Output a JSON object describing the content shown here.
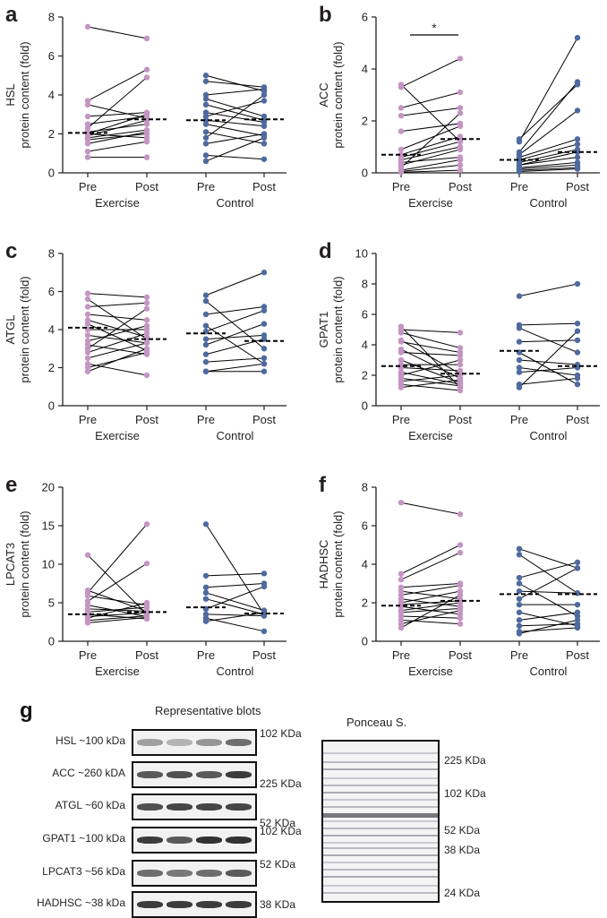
{
  "colors": {
    "exercise": "#c495c3",
    "control": "#4e6a9e",
    "line": "#000000",
    "axis": "#231f20"
  },
  "chart_data": [
    {
      "panel": "a",
      "type": "scatter",
      "ylabel": [
        "HSL",
        "protein content (fold)"
      ],
      "yticks": [
        0,
        2,
        4,
        6,
        8
      ],
      "ylim": [
        0,
        8
      ],
      "categories": [
        "Pre",
        "Post",
        "Pre",
        "Post"
      ],
      "groups": [
        "Exercise",
        "Control"
      ],
      "exercise": {
        "pre": [
          7.5,
          3.7,
          3.5,
          2.9,
          2.5,
          2.3,
          2.1,
          2.0,
          2.0,
          1.9,
          1.8,
          1.7,
          1.5,
          1.1,
          0.8
        ],
        "post": [
          6.9,
          5.3,
          2.8,
          3.1,
          2.9,
          4.9,
          2.5,
          3.0,
          1.8,
          2.7,
          2.2,
          2.0,
          2.1,
          1.6,
          0.8
        ],
        "mean_pre": 2.05,
        "mean_post": 2.75
      },
      "control": {
        "pre": [
          5.0,
          4.7,
          4.0,
          3.8,
          3.5,
          3.1,
          2.9,
          2.7,
          2.5,
          2.1,
          1.8,
          1.5,
          0.9,
          0.6
        ],
        "post": [
          4.2,
          4.4,
          4.3,
          2.9,
          2.7,
          2.6,
          3.7,
          2.4,
          1.9,
          1.5,
          4.0,
          2.0,
          0.7,
          1.8
        ],
        "mean_pre": 2.7,
        "mean_post": 2.75
      },
      "annotation": ""
    },
    {
      "panel": "b",
      "type": "scatter",
      "ylabel": [
        "ACC",
        "protein content (fold)"
      ],
      "yticks": [
        0,
        2,
        4,
        6
      ],
      "ylim": [
        0,
        6
      ],
      "categories": [
        "Pre",
        "Post",
        "Pre",
        "Post"
      ],
      "groups": [
        "Exercise",
        "Control"
      ],
      "exercise": {
        "pre": [
          3.4,
          3.3,
          2.5,
          2.2,
          1.6,
          0.9,
          0.7,
          0.6,
          0.5,
          0.4,
          0.3,
          0.2,
          0.1,
          0.05,
          0.02
        ],
        "post": [
          1.2,
          4.4,
          3.1,
          2.5,
          1.9,
          1.8,
          1.4,
          1.2,
          1.0,
          0.6,
          0.9,
          2.3,
          0.5,
          0.3,
          0.1
        ],
        "mean_pre": 0.7,
        "mean_post": 1.3
      },
      "control": {
        "pre": [
          1.3,
          1.2,
          0.8,
          0.7,
          0.6,
          0.5,
          0.4,
          0.3,
          0.3,
          0.2,
          0.15,
          0.1,
          0.05
        ],
        "post": [
          3.4,
          5.2,
          3.5,
          2.4,
          1.3,
          1.1,
          0.9,
          0.8,
          0.6,
          0.4,
          0.3,
          0.2,
          0.15
        ],
        "mean_pre": 0.5,
        "mean_post": 0.8
      },
      "annotation": "*"
    },
    {
      "panel": "c",
      "type": "scatter",
      "ylabel": [
        "ATGL",
        "protein content (fold)"
      ],
      "yticks": [
        0,
        2,
        4,
        6,
        8
      ],
      "ylim": [
        0,
        8
      ],
      "categories": [
        "Pre",
        "Post",
        "Pre",
        "Post"
      ],
      "groups": [
        "Exercise",
        "Control"
      ],
      "exercise": {
        "pre": [
          5.9,
          5.6,
          5.2,
          4.8,
          4.5,
          4.3,
          4.0,
          3.7,
          3.4,
          3.2,
          3.0,
          2.8,
          2.5,
          2.2,
          2.0,
          1.8
        ],
        "post": [
          5.7,
          3.5,
          5.4,
          4.5,
          3.6,
          2.9,
          4.0,
          3.3,
          4.2,
          2.7,
          5.1,
          3.8,
          3.3,
          1.6,
          2.8,
          3.0
        ],
        "mean_pre": 4.1,
        "mean_post": 3.5
      },
      "control": {
        "pre": [
          5.8,
          5.5,
          4.8,
          4.2,
          3.9,
          3.5,
          3.2,
          2.7,
          2.3,
          1.8,
          1.8
        ],
        "post": [
          7.0,
          3.0,
          5.2,
          2.2,
          5.0,
          3.7,
          4.3,
          3.5,
          2.5,
          2.2,
          1.8
        ],
        "mean_pre": 3.8,
        "mean_post": 3.4
      },
      "annotation": ""
    },
    {
      "panel": "d",
      "type": "scatter",
      "ylabel": [
        "GPAT1",
        "protein content (fold)"
      ],
      "yticks": [
        0,
        2,
        4,
        6,
        8,
        10
      ],
      "ylim": [
        0,
        10
      ],
      "categories": [
        "Pre",
        "Post",
        "Pre",
        "Post"
      ],
      "groups": [
        "Exercise",
        "Control"
      ],
      "exercise": {
        "pre": [
          5.2,
          5.0,
          4.8,
          4.3,
          4.2,
          3.7,
          3.5,
          3.0,
          2.7,
          2.5,
          2.2,
          2.0,
          1.8,
          1.6,
          1.4,
          1.2
        ],
        "post": [
          1.2,
          4.8,
          3.8,
          2.1,
          3.5,
          1.8,
          3.3,
          1.5,
          2.7,
          2.3,
          1.4,
          3.0,
          1.3,
          2.0,
          1.0,
          1.7
        ],
        "mean_pre": 2.6,
        "mean_post": 2.1
      },
      "control": {
        "pre": [
          7.2,
          5.3,
          5.1,
          4.2,
          3.5,
          3.0,
          2.5,
          2.2,
          1.4,
          1.2
        ],
        "post": [
          8.0,
          5.4,
          3.5,
          4.3,
          1.4,
          2.7,
          2.0,
          2.5,
          1.8,
          4.9
        ],
        "mean_pre": 3.6,
        "mean_post": 2.6
      },
      "annotation": ""
    },
    {
      "panel": "e",
      "type": "scatter",
      "ylabel": [
        "LPCAT3",
        "protein content (fold)"
      ],
      "yticks": [
        0,
        5,
        10,
        15,
        20
      ],
      "ylim": [
        0,
        20
      ],
      "categories": [
        "Pre",
        "Post",
        "Pre",
        "Post"
      ],
      "groups": [
        "Exercise",
        "Control"
      ],
      "exercise": {
        "pre": [
          11.2,
          6.6,
          6.3,
          5.9,
          5.2,
          4.7,
          4.2,
          3.8,
          3.5,
          3.2,
          3.0,
          2.7,
          2.4
        ],
        "post": [
          3.5,
          3.9,
          15.2,
          4.7,
          10.1,
          3.2,
          3.9,
          4.4,
          2.9,
          3.7,
          5.0,
          3.3,
          3.1
        ],
        "mean_pre": 3.5,
        "mean_post": 3.8
      },
      "control": {
        "pre": [
          15.2,
          8.5,
          7.0,
          6.3,
          5.5,
          4.2,
          3.5,
          3.0,
          2.6
        ],
        "post": [
          3.5,
          8.8,
          7.5,
          4.0,
          3.5,
          7.1,
          3.3,
          1.3,
          3.7
        ],
        "mean_pre": 4.4,
        "mean_post": 3.6
      },
      "annotation": ""
    },
    {
      "panel": "f",
      "type": "scatter",
      "ylabel": [
        "HADHSC",
        "protein content (fold)"
      ],
      "yticks": [
        0,
        2,
        4,
        6,
        8
      ],
      "ylim": [
        0,
        8
      ],
      "categories": [
        "Pre",
        "Post",
        "Pre",
        "Post"
      ],
      "groups": [
        "Exercise",
        "Control"
      ],
      "exercise": {
        "pre": [
          7.2,
          3.5,
          3.2,
          2.8,
          2.6,
          2.4,
          2.2,
          2.0,
          1.9,
          1.8,
          1.6,
          1.5,
          1.3,
          1.1,
          0.9,
          0.7
        ],
        "post": [
          6.6,
          5.0,
          4.6,
          3.0,
          2.2,
          2.9,
          1.8,
          2.6,
          2.1,
          1.4,
          2.0,
          1.7,
          1.2,
          0.9,
          1.6,
          2.4
        ],
        "mean_pre": 1.85,
        "mean_post": 2.1
      },
      "control": {
        "pre": [
          4.8,
          4.5,
          3.3,
          3.0,
          2.6,
          2.2,
          1.9,
          1.5,
          1.1,
          0.8,
          0.5,
          0.4
        ],
        "post": [
          3.8,
          2.5,
          4.1,
          1.3,
          2.5,
          3.8,
          1.9,
          0.8,
          1.5,
          0.9,
          0.7,
          1.1
        ],
        "mean_pre": 2.45,
        "mean_post": 2.45
      },
      "annotation": ""
    }
  ],
  "blots": {
    "panel_label": "g",
    "title": "Representative blots",
    "rows": [
      {
        "label": "HSL ~100 kDa",
        "marker": "102 KDa",
        "intensity": [
          0.35,
          0.25,
          0.4,
          0.6
        ]
      },
      {
        "label": "ACC ~260 kDA",
        "marker": "225 KDa",
        "intensity": [
          0.7,
          0.75,
          0.7,
          0.85
        ]
      },
      {
        "label": "ATGL ~60 kDa",
        "marker": "52 KDa",
        "intensity": [
          0.75,
          0.8,
          0.8,
          0.8
        ]
      },
      {
        "label": "GPAT1 ~100 kDa",
        "marker": "102 KDa",
        "intensity": [
          0.85,
          0.7,
          0.9,
          0.9
        ]
      },
      {
        "label": "LPCAT3 ~56 kDa",
        "marker": "52 KDa",
        "intensity": [
          0.6,
          0.55,
          0.6,
          0.7
        ]
      },
      {
        "label": "HADHSC ~38 kDa",
        "marker": "38 KDa",
        "intensity": [
          0.85,
          0.85,
          0.85,
          0.85
        ]
      }
    ],
    "ponceau": {
      "title": "Ponceau S.",
      "markers": [
        "225 KDa",
        "102 KDa",
        "52 KDa",
        "38 KDa",
        "24 KDa"
      ]
    }
  }
}
